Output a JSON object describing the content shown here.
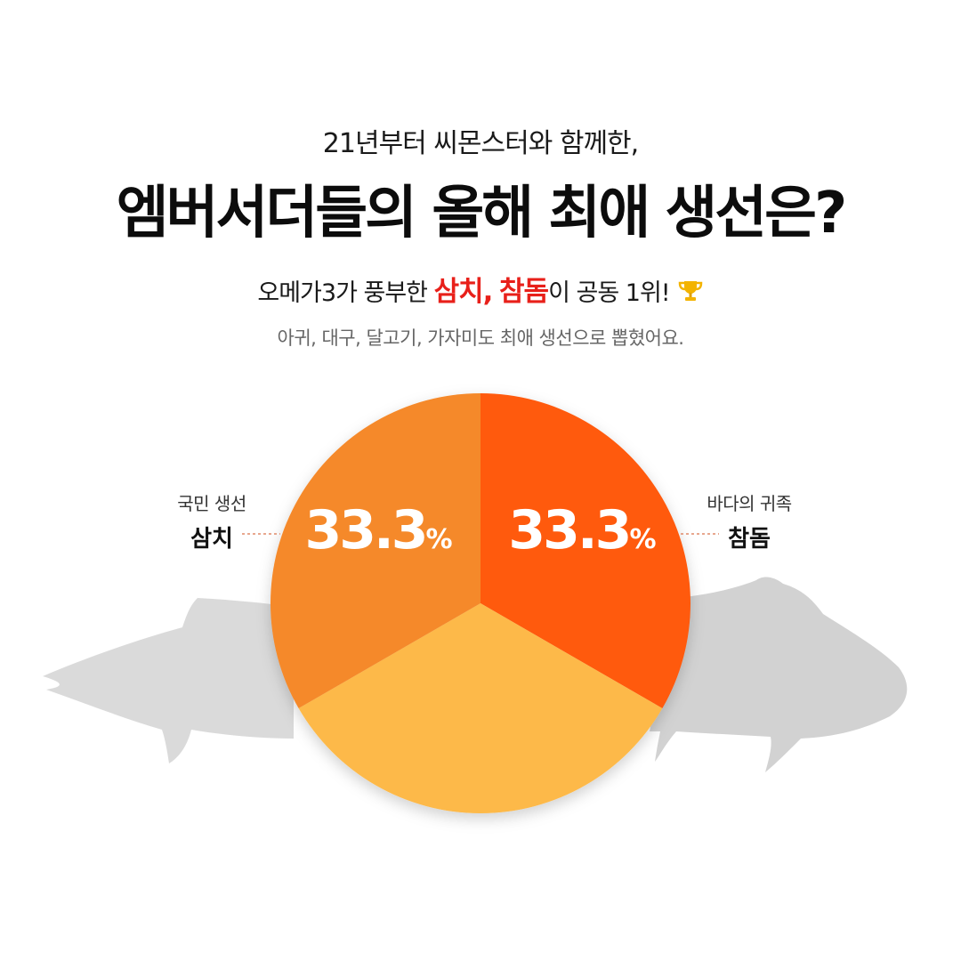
{
  "header": {
    "subtitle": "21년부터 씨몬스터와 함께한,",
    "title": "엠버서더들의 올해 최애 생선은?",
    "headline_pre": "오메가3가 풍부한 ",
    "headline_hl1": "삼치,",
    "headline_hl2": "참돔",
    "headline_post": "이 공동 1위!",
    "note": "아귀,  대구, 달고기, 가자미도 최애 생선으로 뽑혔어요."
  },
  "labels": {
    "left_small": "국민 생선",
    "left_big": "삼치",
    "right_small": "바다의 귀족",
    "right_big": "참돔"
  },
  "colors": {
    "left_slice": "#f5892a",
    "right_slice": "#ff5a10",
    "bottom_slice": "#fdb94a",
    "highlight": "#e8201a",
    "fish_silhouette": "#d9d9d9"
  },
  "chart_data": {
    "type": "pie",
    "slices": [
      {
        "name": "삼치",
        "value": 33.3,
        "label": "33.3",
        "unit": "%"
      },
      {
        "name": "참돔",
        "value": 33.3,
        "label": "33.3",
        "unit": "%"
      },
      {
        "name": "",
        "value": 33.3,
        "label": "",
        "unit": ""
      }
    ]
  }
}
